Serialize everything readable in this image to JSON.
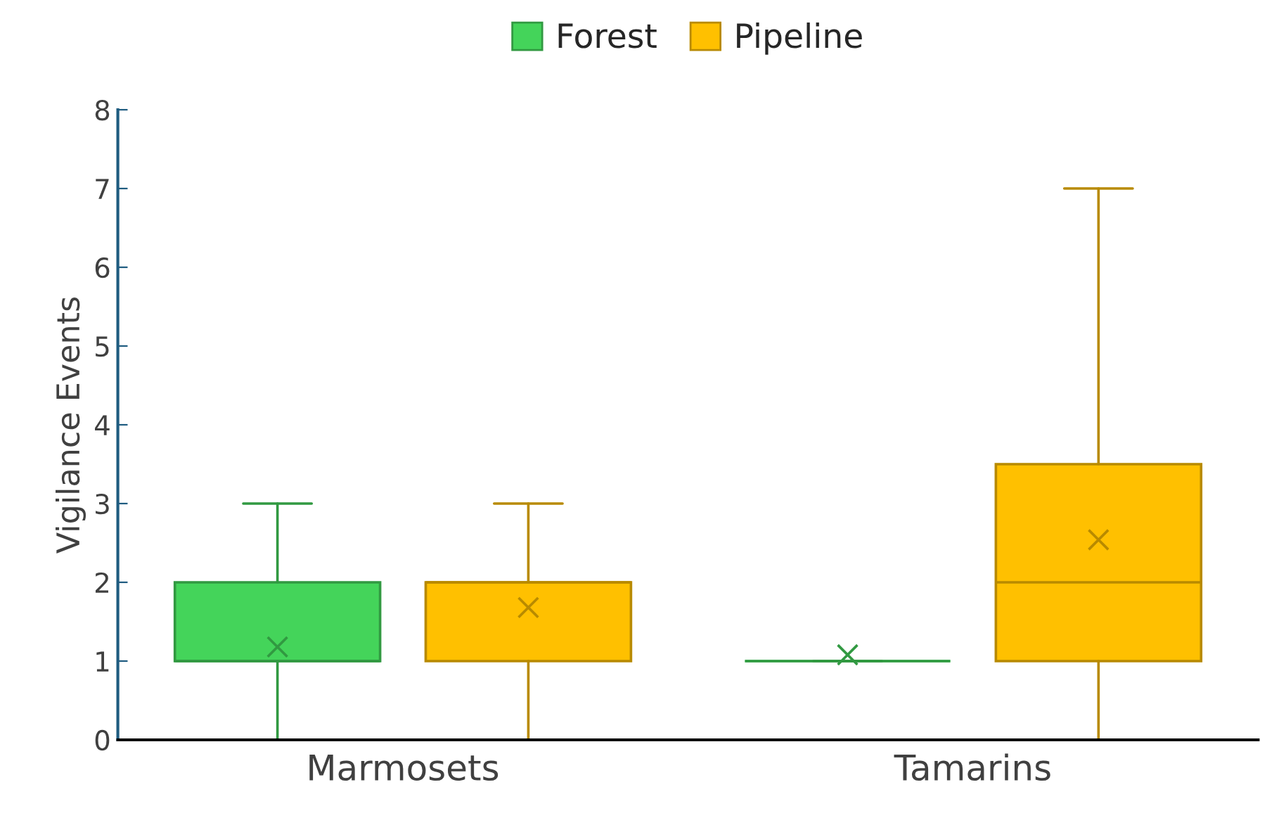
{
  "chart_data": {
    "type": "box",
    "ylabel": "Vigilance Events",
    "categories": [
      "Marmosets",
      "Tamarins"
    ],
    "series": [
      {
        "name": "Forest",
        "color": "#44d45a",
        "boxes": [
          {
            "low": 0,
            "q1": 1,
            "median": 1,
            "q3": 2,
            "high": 3,
            "mean": 1.18
          },
          {
            "low": 1,
            "q1": 1,
            "median": 1,
            "q3": 1,
            "high": 1,
            "mean": 1.08
          }
        ]
      },
      {
        "name": "Pipeline",
        "color": "#ffc000",
        "boxes": [
          {
            "low": 0,
            "q1": 1,
            "median": 2,
            "q3": 2,
            "high": 3,
            "mean": 1.68
          },
          {
            "low": 0,
            "q1": 1,
            "median": 2,
            "q3": 3.5,
            "high": 7,
            "mean": 2.54
          }
        ]
      }
    ],
    "ylim": [
      0,
      8
    ],
    "yticks": [
      0,
      1,
      2,
      3,
      4,
      5,
      6,
      7,
      8
    ],
    "legend": "top"
  }
}
